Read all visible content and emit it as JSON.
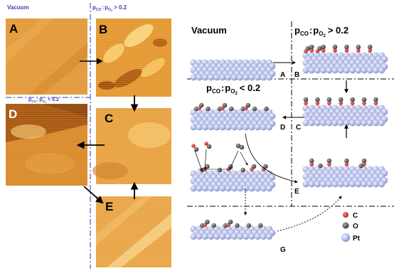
{
  "left_panel": {
    "vacuum_label": "Vacuum",
    "ratio_high": {
      "p": "p",
      "co": "CO",
      "sep": ":",
      "o": "O",
      "two": "2",
      "rel": "> 0.2"
    },
    "ratio_low": {
      "p": "p",
      "co": "CO",
      "sep": ":",
      "o": "O",
      "two": "2",
      "rel": "< 0.2"
    },
    "image_labels": [
      "A",
      "B",
      "C",
      "D",
      "E"
    ]
  },
  "right_panel": {
    "vacuum_label": "Vacuum",
    "ratio_high": {
      "p": "p",
      "co": "CO",
      "sep": ":",
      "o": "O",
      "two": "2",
      "rel": "> 0.2"
    },
    "ratio_low": {
      "p": "p",
      "co": "CO",
      "sep": ":",
      "o": "O",
      "two": "2",
      "rel": "< 0.2"
    },
    "model_labels": [
      "A",
      "B",
      "C",
      "D",
      "E",
      "G"
    ],
    "legend": [
      {
        "symbol": "C",
        "label": "C",
        "color": "#e2231a"
      },
      {
        "symbol": "O",
        "label": "O",
        "color": "#5a5a5a"
      },
      {
        "symbol": "Pt",
        "label": "Pt",
        "color": "#b4bde6"
      }
    ]
  },
  "colors": {
    "stm_light": "#f2b24a",
    "stm_mid": "#d98a2a",
    "stm_dark": "#a8580f",
    "dashdot": "#5b63c9",
    "pt": "#b4bde6",
    "carbon": "#e2231a",
    "oxygen": "#5a5a5a"
  }
}
